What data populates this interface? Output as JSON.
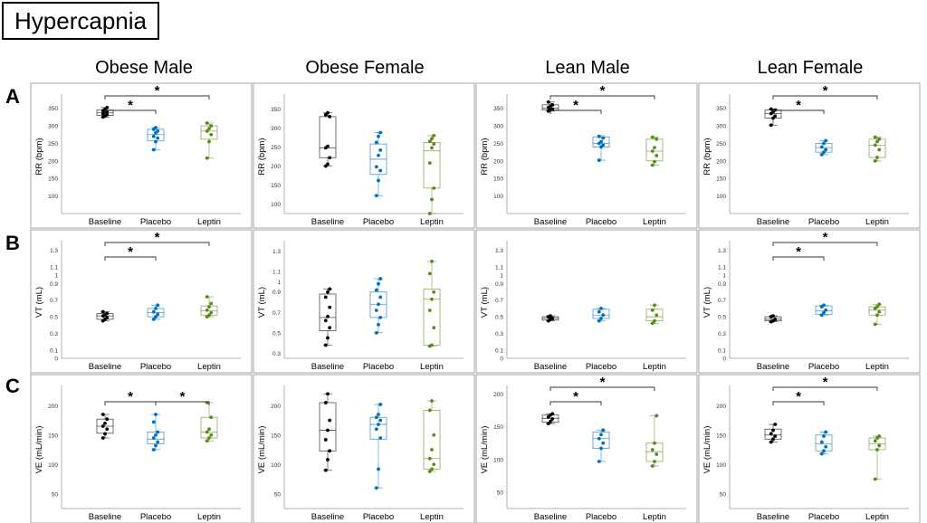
{
  "title": "Hypercapnia",
  "columns": [
    "Obese Male",
    "Obese Female",
    "Lean Male",
    "Lean Female"
  ],
  "rows": [
    "A",
    "B",
    "C"
  ],
  "colors": {
    "Baseline": "#000000",
    "Placebo": "#0070c0",
    "Leptin": "#5a8a1a"
  },
  "chart_data": [
    {
      "type": "box",
      "row": "A",
      "column": "Obese Male",
      "title": "Obese Male",
      "ylabel": "RR (bpm)",
      "ylim": [
        50,
        375
      ],
      "yticks": [
        100,
        150,
        200,
        250,
        300,
        350
      ],
      "categories": [
        "Baseline",
        "Placebo",
        "Leptin"
      ],
      "boxes": [
        {
          "name": "Baseline",
          "min": 325,
          "q1": 330,
          "median": 337,
          "q3": 345,
          "max": 352,
          "points": [
            325,
            328,
            332,
            335,
            338,
            340,
            343,
            348,
            352
          ]
        },
        {
          "name": "Placebo",
          "min": 232,
          "q1": 257,
          "median": 275,
          "q3": 290,
          "max": 295,
          "points": [
            232,
            255,
            265,
            270,
            280,
            285,
            290,
            295
          ]
        },
        {
          "name": "Leptin",
          "min": 208,
          "q1": 262,
          "median": 285,
          "q3": 300,
          "max": 308,
          "points": [
            208,
            255,
            275,
            285,
            292,
            300,
            308
          ]
        }
      ],
      "significance": [
        {
          "from": "Baseline",
          "to": "Placebo",
          "label": "*"
        },
        {
          "from": "Baseline",
          "to": "Leptin",
          "label": "*"
        }
      ]
    },
    {
      "type": "box",
      "row": "A",
      "column": "Obese Female",
      "title": "Obese Female",
      "ylabel": "RR (bpm)",
      "ylim": [
        75,
        375
      ],
      "yticks": [
        100,
        150,
        200,
        250,
        300,
        350
      ],
      "categories": [
        "Baseline",
        "Placebo",
        "Leptin"
      ],
      "boxes": [
        {
          "name": "Baseline",
          "min": 200,
          "q1": 222,
          "median": 248,
          "q3": 330,
          "max": 340,
          "points": [
            200,
            205,
            222,
            248,
            252,
            330,
            335,
            340
          ]
        },
        {
          "name": "Placebo",
          "min": 122,
          "q1": 178,
          "median": 218,
          "q3": 258,
          "max": 288,
          "points": [
            122,
            162,
            188,
            198,
            228,
            242,
            262,
            278,
            288
          ]
        },
        {
          "name": "Leptin",
          "min": 75,
          "q1": 142,
          "median": 240,
          "q3": 262,
          "max": 280,
          "points": [
            75,
            112,
            142,
            208,
            248,
            258,
            265,
            272,
            280
          ]
        }
      ],
      "significance": []
    },
    {
      "type": "box",
      "row": "A",
      "column": "Lean Male",
      "title": "Lean Male",
      "ylabel": "RR (bpm)",
      "ylim": [
        50,
        375
      ],
      "yticks": [
        100,
        150,
        200,
        250,
        300,
        350
      ],
      "categories": [
        "Baseline",
        "Placebo",
        "Leptin"
      ],
      "boxes": [
        {
          "name": "Baseline",
          "min": 342,
          "q1": 345,
          "median": 350,
          "q3": 360,
          "max": 368,
          "points": [
            342,
            345,
            348,
            352,
            356,
            360,
            368
          ]
        },
        {
          "name": "Placebo",
          "min": 202,
          "q1": 240,
          "median": 250,
          "q3": 268,
          "max": 272,
          "points": [
            202,
            240,
            245,
            250,
            255,
            265,
            270
          ]
        },
        {
          "name": "Leptin",
          "min": 188,
          "q1": 200,
          "median": 228,
          "q3": 262,
          "max": 268,
          "points": [
            188,
            198,
            215,
            228,
            238,
            262,
            268
          ]
        }
      ],
      "significance": [
        {
          "from": "Baseline",
          "to": "Placebo",
          "label": "*"
        },
        {
          "from": "Baseline",
          "to": "Leptin",
          "label": "*"
        }
      ]
    },
    {
      "type": "box",
      "row": "A",
      "column": "Lean Female",
      "title": "Lean Female",
      "ylabel": "RR (bpm)",
      "ylim": [
        50,
        375
      ],
      "yticks": [
        100,
        150,
        200,
        250,
        300,
        350
      ],
      "categories": [
        "Baseline",
        "Placebo",
        "Leptin"
      ],
      "boxes": [
        {
          "name": "Baseline",
          "min": 302,
          "q1": 322,
          "median": 335,
          "q3": 345,
          "max": 348,
          "points": [
            302,
            322,
            328,
            335,
            340,
            345,
            348
          ]
        },
        {
          "name": "Placebo",
          "min": 218,
          "q1": 225,
          "median": 238,
          "q3": 250,
          "max": 258,
          "points": [
            218,
            225,
            232,
            240,
            250,
            258
          ]
        },
        {
          "name": "Leptin",
          "min": 200,
          "q1": 210,
          "median": 245,
          "q3": 262,
          "max": 268,
          "points": [
            200,
            210,
            232,
            245,
            255,
            262,
            268
          ]
        }
      ],
      "significance": [
        {
          "from": "Baseline",
          "to": "Placebo",
          "label": "*"
        },
        {
          "from": "Baseline",
          "to": "Leptin",
          "label": "*"
        }
      ]
    },
    {
      "type": "box",
      "row": "B",
      "column": "Obese Male",
      "title": "Obese Male",
      "ylabel": "VT (mL)",
      "ylim": [
        0,
        1.35
      ],
      "yticks": [
        0,
        0.1,
        0.3,
        0.5,
        0.7,
        0.9,
        1.0,
        1.1,
        1.3
      ],
      "categories": [
        "Baseline",
        "Placebo",
        "Leptin"
      ],
      "boxes": [
        {
          "name": "Baseline",
          "min": 0.45,
          "q1": 0.47,
          "median": 0.51,
          "q3": 0.54,
          "max": 0.56,
          "points": [
            0.45,
            0.47,
            0.49,
            0.51,
            0.52,
            0.54,
            0.56
          ]
        },
        {
          "name": "Placebo",
          "min": 0.47,
          "q1": 0.5,
          "median": 0.55,
          "q3": 0.6,
          "max": 0.64,
          "points": [
            0.47,
            0.5,
            0.53,
            0.56,
            0.6,
            0.64
          ]
        },
        {
          "name": "Leptin",
          "min": 0.5,
          "q1": 0.52,
          "median": 0.57,
          "q3": 0.63,
          "max": 0.74,
          "points": [
            0.5,
            0.52,
            0.55,
            0.58,
            0.62,
            0.66,
            0.74
          ]
        }
      ],
      "significance": [
        {
          "from": "Baseline",
          "to": "Placebo",
          "label": "*"
        },
        {
          "from": "Baseline",
          "to": "Leptin",
          "label": "*"
        }
      ]
    },
    {
      "type": "box",
      "row": "B",
      "column": "Obese Female",
      "title": "Obese Female",
      "ylabel": "VT (mL)",
      "ylim": [
        0.25,
        1.35
      ],
      "yticks": [
        0.3,
        0.5,
        0.7,
        0.9,
        1.0,
        1.1,
        1.3
      ],
      "categories": [
        "Baseline",
        "Placebo",
        "Leptin"
      ],
      "boxes": [
        {
          "name": "Baseline",
          "min": 0.38,
          "q1": 0.52,
          "median": 0.65,
          "q3": 0.88,
          "max": 0.93,
          "points": [
            0.38,
            0.45,
            0.55,
            0.62,
            0.66,
            0.75,
            0.85,
            0.9,
            0.93
          ]
        },
        {
          "name": "Placebo",
          "min": 0.5,
          "q1": 0.65,
          "median": 0.78,
          "q3": 0.9,
          "max": 1.03,
          "points": [
            0.5,
            0.58,
            0.65,
            0.72,
            0.78,
            0.85,
            0.92,
            0.98,
            1.03
          ]
        },
        {
          "name": "Leptin",
          "min": 0.37,
          "q1": 0.38,
          "median": 0.83,
          "q3": 0.93,
          "max": 1.2,
          "points": [
            0.37,
            0.38,
            0.55,
            0.72,
            0.83,
            0.9,
            1.08,
            1.2
          ]
        }
      ],
      "significance": []
    },
    {
      "type": "box",
      "row": "B",
      "column": "Lean Male",
      "title": "Lean Male",
      "ylabel": "VT (mL)",
      "ylim": [
        0,
        1.35
      ],
      "yticks": [
        0,
        0.1,
        0.3,
        0.5,
        0.7,
        0.9,
        1.0,
        1.1,
        1.3
      ],
      "categories": [
        "Baseline",
        "Placebo",
        "Leptin"
      ],
      "boxes": [
        {
          "name": "Baseline",
          "min": 0.45,
          "q1": 0.46,
          "median": 0.48,
          "q3": 0.5,
          "max": 0.51,
          "points": [
            0.45,
            0.47,
            0.48,
            0.5,
            0.51
          ]
        },
        {
          "name": "Placebo",
          "min": 0.45,
          "q1": 0.48,
          "median": 0.52,
          "q3": 0.59,
          "max": 0.6,
          "points": [
            0.45,
            0.48,
            0.52,
            0.56,
            0.6
          ]
        },
        {
          "name": "Leptin",
          "min": 0.42,
          "q1": 0.45,
          "median": 0.5,
          "q3": 0.59,
          "max": 0.64,
          "points": [
            0.42,
            0.45,
            0.52,
            0.58,
            0.64
          ]
        }
      ],
      "significance": []
    },
    {
      "type": "box",
      "row": "B",
      "column": "Lean Female",
      "title": "Lean Female",
      "ylabel": "VT (mL)",
      "ylim": [
        0,
        1.35
      ],
      "yticks": [
        0,
        0.1,
        0.3,
        0.5,
        0.7,
        0.9,
        1.0,
        1.1,
        1.3
      ],
      "categories": [
        "Baseline",
        "Placebo",
        "Leptin"
      ],
      "boxes": [
        {
          "name": "Baseline",
          "min": 0.44,
          "q1": 0.45,
          "median": 0.47,
          "q3": 0.5,
          "max": 0.51,
          "points": [
            0.44,
            0.45,
            0.47,
            0.5,
            0.51
          ]
        },
        {
          "name": "Placebo",
          "min": 0.52,
          "q1": 0.53,
          "median": 0.57,
          "q3": 0.63,
          "max": 0.64,
          "points": [
            0.52,
            0.55,
            0.58,
            0.62,
            0.64
          ]
        },
        {
          "name": "Leptin",
          "min": 0.41,
          "q1": 0.52,
          "median": 0.58,
          "q3": 0.62,
          "max": 0.65,
          "points": [
            0.41,
            0.52,
            0.56,
            0.6,
            0.62,
            0.65
          ]
        }
      ],
      "significance": [
        {
          "from": "Baseline",
          "to": "Placebo",
          "label": "*"
        },
        {
          "from": "Baseline",
          "to": "Leptin",
          "label": "*"
        }
      ]
    },
    {
      "type": "box",
      "row": "C",
      "column": "Obese Male",
      "title": "Obese Male",
      "ylabel": "VE (mL/min)",
      "ylim": [
        25,
        225
      ],
      "yticks": [
        50,
        100,
        150,
        200
      ],
      "categories": [
        "Baseline",
        "Placebo",
        "Leptin"
      ],
      "boxes": [
        {
          "name": "Baseline",
          "min": 145,
          "q1": 153,
          "median": 165,
          "q3": 177,
          "max": 185,
          "points": [
            145,
            152,
            160,
            165,
            170,
            177,
            185
          ]
        },
        {
          "name": "Placebo",
          "min": 125,
          "q1": 135,
          "median": 143,
          "q3": 155,
          "max": 185,
          "points": [
            125,
            132,
            138,
            145,
            150,
            155,
            172,
            185
          ]
        },
        {
          "name": "Leptin",
          "min": 140,
          "q1": 145,
          "median": 155,
          "q3": 180,
          "max": 205,
          "points": [
            140,
            145,
            150,
            155,
            160,
            180,
            205
          ]
        }
      ],
      "significance": [
        {
          "from": "Baseline",
          "to": "Placebo",
          "label": "*"
        },
        {
          "from": "Placebo",
          "to": "Leptin",
          "label": "*"
        }
      ]
    },
    {
      "type": "box",
      "row": "C",
      "column": "Obese Female",
      "title": "Obese Female",
      "ylabel": "VE (mL/min)",
      "ylim": [
        25,
        225
      ],
      "yticks": [
        50,
        100,
        150,
        200
      ],
      "categories": [
        "Baseline",
        "Placebo",
        "Leptin"
      ],
      "boxes": [
        {
          "name": "Baseline",
          "min": 90,
          "q1": 123,
          "median": 158,
          "q3": 205,
          "max": 220,
          "points": [
            90,
            108,
            123,
            142,
            158,
            175,
            205,
            220
          ]
        },
        {
          "name": "Placebo",
          "min": 60,
          "q1": 143,
          "median": 168,
          "q3": 180,
          "max": 202,
          "points": [
            60,
            92,
            145,
            160,
            168,
            175,
            180,
            185,
            202
          ]
        },
        {
          "name": "Leptin",
          "min": 88,
          "q1": 92,
          "median": 110,
          "q3": 192,
          "max": 208,
          "points": [
            88,
            92,
            100,
            110,
            125,
            150,
            192,
            208
          ]
        }
      ],
      "significance": []
    },
    {
      "type": "box",
      "row": "C",
      "column": "Lean Male",
      "title": "Lean Male",
      "ylabel": "VE (mL/min)",
      "ylim": [
        25,
        205
      ],
      "yticks": [
        50,
        100,
        150,
        200
      ],
      "categories": [
        "Baseline",
        "Placebo",
        "Leptin"
      ],
      "boxes": [
        {
          "name": "Baseline",
          "min": 155,
          "q1": 157,
          "median": 163,
          "q3": 168,
          "max": 170,
          "points": [
            155,
            158,
            162,
            165,
            168,
            170
          ]
        },
        {
          "name": "Placebo",
          "min": 97,
          "q1": 117,
          "median": 132,
          "q3": 142,
          "max": 145,
          "points": [
            97,
            117,
            125,
            132,
            138,
            145
          ]
        },
        {
          "name": "Leptin",
          "min": 90,
          "q1": 97,
          "median": 112,
          "q3": 125,
          "max": 167,
          "points": [
            90,
            97,
            108,
            115,
            125,
            167
          ]
        }
      ],
      "significance": [
        {
          "from": "Baseline",
          "to": "Placebo",
          "label": "*"
        },
        {
          "from": "Baseline",
          "to": "Leptin",
          "label": "*"
        }
      ]
    },
    {
      "type": "box",
      "row": "C",
      "column": "Lean Female",
      "title": "Lean Female",
      "ylabel": "VE (mL/min)",
      "ylim": [
        25,
        225
      ],
      "yticks": [
        50,
        100,
        150,
        200
      ],
      "categories": [
        "Baseline",
        "Placebo",
        "Leptin"
      ],
      "boxes": [
        {
          "name": "Baseline",
          "min": 138,
          "q1": 143,
          "median": 150,
          "q3": 160,
          "max": 168,
          "points": [
            138,
            143,
            148,
            152,
            158,
            168
          ]
        },
        {
          "name": "Placebo",
          "min": 118,
          "q1": 123,
          "median": 135,
          "q3": 150,
          "max": 155,
          "points": [
            118,
            123,
            130,
            138,
            148,
            155
          ]
        },
        {
          "name": "Leptin",
          "min": 75,
          "q1": 125,
          "median": 135,
          "q3": 145,
          "max": 148,
          "points": [
            75,
            125,
            132,
            140,
            145,
            148
          ]
        }
      ],
      "significance": [
        {
          "from": "Baseline",
          "to": "Placebo",
          "label": "*"
        },
        {
          "from": "Baseline",
          "to": "Leptin",
          "label": "*"
        }
      ]
    }
  ]
}
